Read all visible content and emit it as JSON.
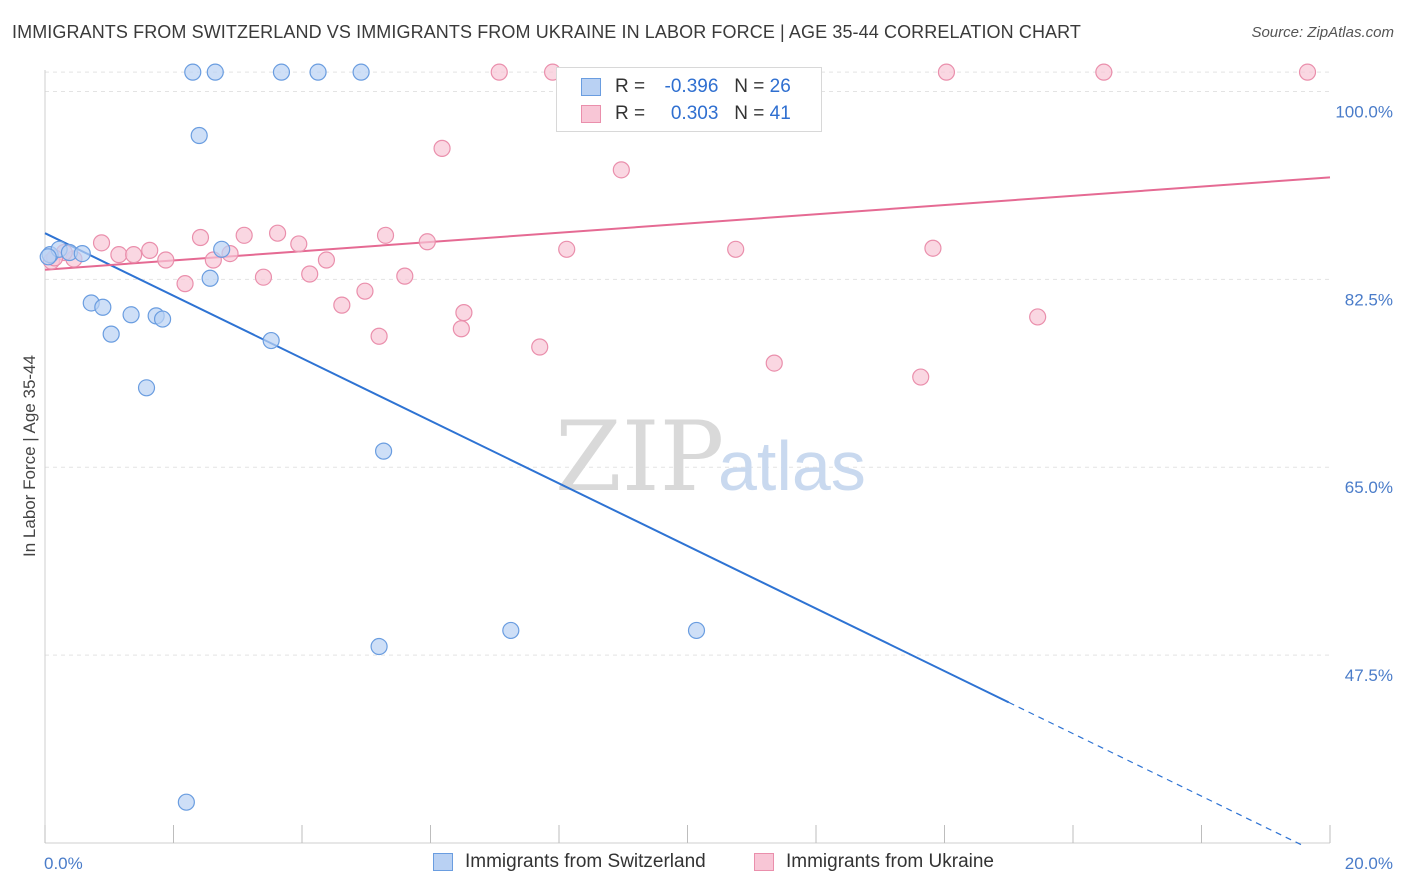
{
  "title": "IMMIGRANTS FROM SWITZERLAND VS IMMIGRANTS FROM UKRAINE IN LABOR FORCE | AGE 35-44 CORRELATION CHART",
  "source": "Source: ZipAtlas.com",
  "watermark": {
    "zip": "ZIP",
    "atlas": "atlas"
  },
  "colors": {
    "blue_fill": "#b9d1f3",
    "blue_stroke": "#6a9de0",
    "blue_line": "#2e73d3",
    "pink_fill": "#f8c6d6",
    "pink_stroke": "#ea8fac",
    "pink_line": "#e56a93",
    "grid": "#e3e3e3",
    "tick_text": "#4a7cc9"
  },
  "legend": {
    "blue": {
      "r_label": "R =",
      "r_value": "-0.396",
      "n_label": "N =",
      "n_value": "26"
    },
    "pink": {
      "r_label": "R =",
      "r_value": "0.303",
      "n_label": "N =",
      "n_value": "41"
    }
  },
  "chart_data": {
    "type": "scatter",
    "title": "IMMIGRANTS FROM SWITZERLAND VS IMMIGRANTS FROM UKRAINE IN LABOR FORCE | AGE 35-44 CORRELATION CHART",
    "xlabel": "",
    "ylabel": "In Labor Force | Age 35-44",
    "xlim": [
      0,
      20
    ],
    "ylim": [
      30,
      102
    ],
    "x_tick_labels": [
      {
        "value": 0,
        "label": "0.0%"
      },
      {
        "value": 20,
        "label": "20.0%"
      }
    ],
    "y_ticks": [
      {
        "value": 100,
        "label": "100.0%"
      },
      {
        "value": 82.5,
        "label": "82.5%"
      },
      {
        "value": 65,
        "label": "65.0%"
      },
      {
        "value": 47.5,
        "label": "47.5%"
      }
    ],
    "series": [
      {
        "name": "Immigrants from Switzerland",
        "color": "blue",
        "points": [
          [
            0.08,
            84.8
          ],
          [
            0.22,
            85.3
          ],
          [
            0.38,
            85.0
          ],
          [
            0.58,
            84.9
          ],
          [
            0.72,
            80.3
          ],
          [
            0.9,
            79.9
          ],
          [
            1.03,
            77.4
          ],
          [
            1.34,
            79.2
          ],
          [
            1.58,
            72.4
          ],
          [
            1.73,
            79.1
          ],
          [
            1.83,
            78.8
          ],
          [
            2.2,
            33.8
          ],
          [
            2.3,
            101.8
          ],
          [
            2.4,
            95.9
          ],
          [
            2.57,
            82.6
          ],
          [
            2.65,
            101.8
          ],
          [
            2.75,
            85.3
          ],
          [
            3.52,
            76.8
          ],
          [
            3.68,
            101.8
          ],
          [
            4.25,
            101.8
          ],
          [
            4.92,
            101.8
          ],
          [
            5.2,
            48.3
          ],
          [
            5.27,
            66.5
          ],
          [
            7.25,
            49.8
          ],
          [
            10.14,
            49.8
          ],
          [
            0.05,
            84.6
          ]
        ],
        "trend": {
          "x0": 0.0,
          "y0": 86.8,
          "x1_solid": 15.0,
          "y1_solid": 43.1,
          "x1_dash": 19.6,
          "y1_dash": 29.7
        }
      },
      {
        "name": "Immigrants from Ukraine",
        "color": "pink",
        "points": [
          [
            0.1,
            84.2
          ],
          [
            0.45,
            84.4
          ],
          [
            0.88,
            85.9
          ],
          [
            1.15,
            84.8
          ],
          [
            1.38,
            84.8
          ],
          [
            1.63,
            85.2
          ],
          [
            1.88,
            84.3
          ],
          [
            2.18,
            82.1
          ],
          [
            2.42,
            86.4
          ],
          [
            2.62,
            84.3
          ],
          [
            2.88,
            84.9
          ],
          [
            3.1,
            86.6
          ],
          [
            3.4,
            82.7
          ],
          [
            3.62,
            86.8
          ],
          [
            3.95,
            85.8
          ],
          [
            4.12,
            83.0
          ],
          [
            4.38,
            84.3
          ],
          [
            4.62,
            80.1
          ],
          [
            4.98,
            81.4
          ],
          [
            5.2,
            77.2
          ],
          [
            5.3,
            86.6
          ],
          [
            5.6,
            82.8
          ],
          [
            5.95,
            86.0
          ],
          [
            6.18,
            94.7
          ],
          [
            6.48,
            77.9
          ],
          [
            6.52,
            79.4
          ],
          [
            7.07,
            101.8
          ],
          [
            7.7,
            76.2
          ],
          [
            7.9,
            101.8
          ],
          [
            8.12,
            85.3
          ],
          [
            8.97,
            92.7
          ],
          [
            10.75,
            85.3
          ],
          [
            11.35,
            74.7
          ],
          [
            13.63,
            73.4
          ],
          [
            13.82,
            85.4
          ],
          [
            14.03,
            101.8
          ],
          [
            15.45,
            79.0
          ],
          [
            16.48,
            101.8
          ],
          [
            19.65,
            101.8
          ],
          [
            0.3,
            85.0
          ],
          [
            0.15,
            84.5
          ]
        ],
        "trend": {
          "x0": 0.0,
          "y0": 83.4,
          "x1": 20.0,
          "y1": 92.0
        }
      }
    ]
  },
  "bottom_legend": {
    "blue_label": "Immigrants from Switzerland",
    "pink_label": "Immigrants from Ukraine"
  }
}
